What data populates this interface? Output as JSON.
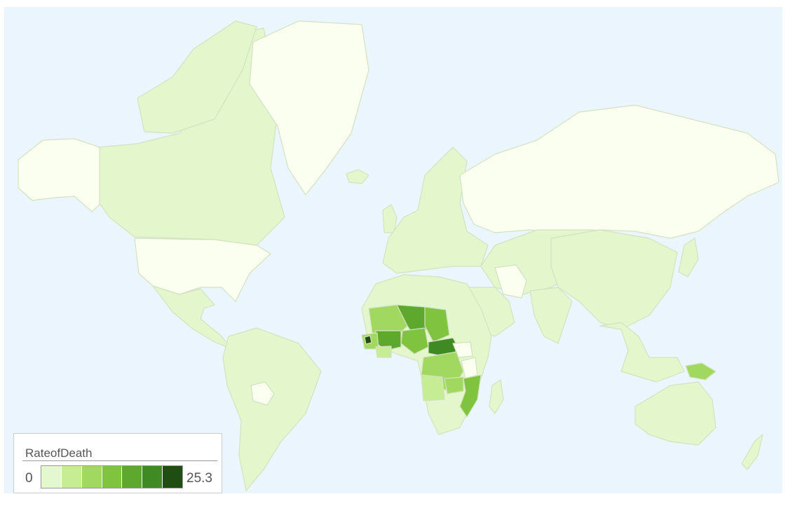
{
  "map": {
    "background": "#eaf5fd",
    "no_data_color": "#fafff0",
    "base_land_color": "#e3f6cc",
    "scale_colors": [
      "#e4f8cf",
      "#c6ec94",
      "#a1d960",
      "#7fc33f",
      "#5ea82d",
      "#3f8a22",
      "#1f4d12"
    ]
  },
  "legend": {
    "title": "RateofDeath",
    "min": "0",
    "max": "25.3"
  }
}
